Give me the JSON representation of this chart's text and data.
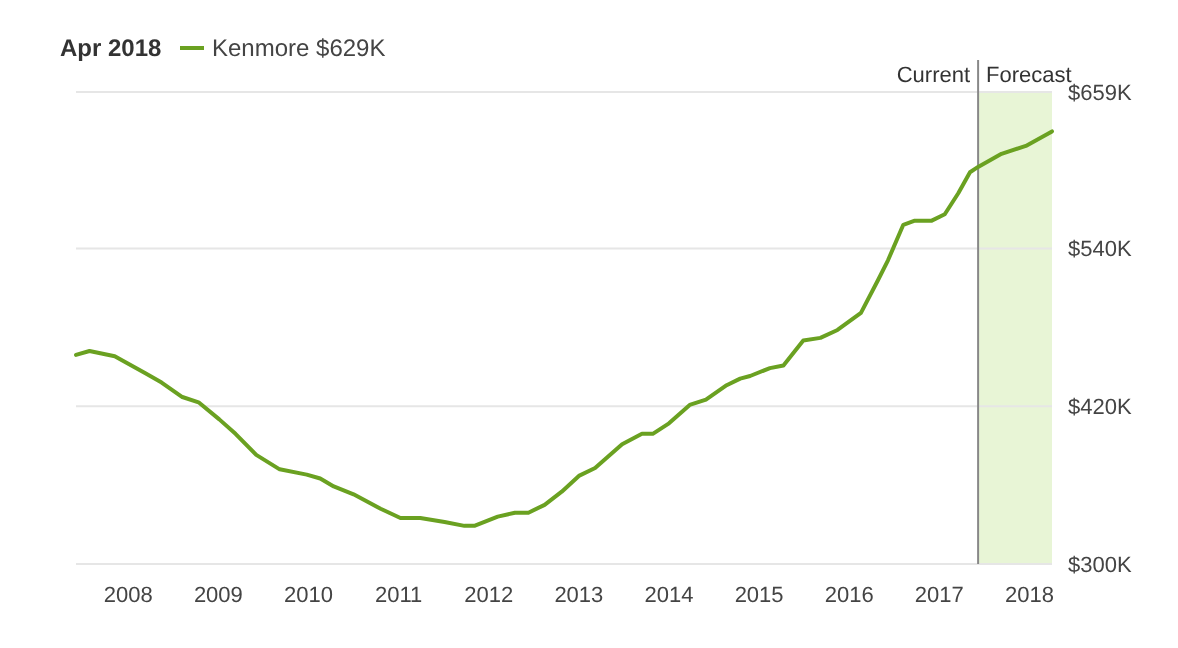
{
  "chart_data": {
    "type": "line",
    "title": "Apr 2018",
    "legend": "top left",
    "grid": "y",
    "series": [
      {
        "name": "Kenmore $629K",
        "color": "#6aa121",
        "x": [
          2007.42,
          2007.57,
          2007.85,
          2008.19,
          2008.37,
          2008.6,
          2008.78,
          2009.01,
          2009.19,
          2009.42,
          2009.68,
          2009.98,
          2010.13,
          2010.28,
          2010.5,
          2010.8,
          2011.02,
          2011.24,
          2011.51,
          2011.73,
          2011.84,
          2012.1,
          2012.29,
          2012.44,
          2012.62,
          2012.81,
          2013.0,
          2013.18,
          2013.48,
          2013.7,
          2013.82,
          2014.0,
          2014.23,
          2014.41,
          2014.64,
          2014.79,
          2014.9,
          2015.12,
          2015.27,
          2015.49,
          2015.68,
          2015.87,
          2016.13,
          2016.32,
          2016.43,
          2016.6,
          2016.72,
          2016.91,
          2017.06,
          2017.21,
          2017.34,
          2017.43,
          2017.69,
          2017.96,
          2018.25
        ],
        "values": [
          459,
          462,
          458,
          445,
          438,
          427,
          423,
          410,
          399,
          383,
          372,
          368,
          365,
          359,
          353,
          342,
          335,
          335,
          332,
          329,
          329,
          336,
          339,
          339,
          345,
          355,
          367,
          373,
          391,
          399,
          399,
          407,
          421,
          425,
          436,
          441,
          443,
          449,
          451,
          470,
          472,
          478,
          491,
          516,
          531,
          558,
          561,
          561,
          566,
          582,
          598,
          602,
          612,
          618,
          629
        ]
      }
    ],
    "xlim": [
      2007.42,
      2018.25
    ],
    "xticks": [
      2008,
      2009,
      2010,
      2011,
      2012,
      2013,
      2014,
      2015,
      2016,
      2017,
      2018
    ],
    "ylim": [
      300,
      659
    ],
    "yticks": [
      {
        "value": 300,
        "label": "$300K"
      },
      {
        "value": 420,
        "label": "$420K"
      },
      {
        "value": 540,
        "label": "$540K"
      },
      {
        "value": 659,
        "label": "$659K"
      }
    ],
    "bands": [
      {
        "axis": "x",
        "from": 2017.43,
        "to": 2018.25,
        "label": "Forecast",
        "color": "#e8f5d6"
      }
    ],
    "ref_lines": [
      {
        "axis": "x",
        "value": 2017.43,
        "label": "Current",
        "color": "#888888"
      }
    ]
  }
}
